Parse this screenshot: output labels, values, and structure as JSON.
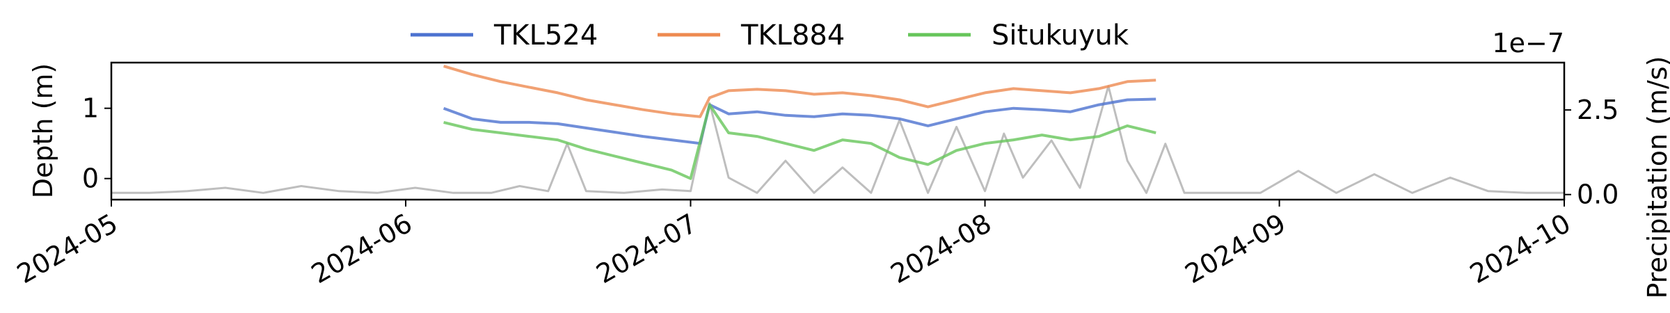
{
  "chart_data": {
    "type": "line",
    "title": "",
    "xlabel": "",
    "ylabel": "Depth (m)",
    "y2label": "Precipitation (m/s)",
    "y2_offset_text": "1e−7",
    "x_range": [
      "2024-05-01",
      "2024-10-01"
    ],
    "x_ticks": [
      "2024-05",
      "2024-06",
      "2024-07",
      "2024-08",
      "2024-09",
      "2024-10"
    ],
    "ylim": [
      -0.3,
      1.65
    ],
    "y_ticks": [
      "0",
      "1"
    ],
    "y2lim": [
      -0.15,
      3.9
    ],
    "y2_ticks": [
      "0.0",
      "2.5"
    ],
    "legend_position": "top-center, outside",
    "grid": false,
    "series": [
      {
        "name": "TKL524",
        "axis": "left",
        "color": "#4C72D0",
        "x": [
          "2024-06-05",
          "2024-06-08",
          "2024-06-11",
          "2024-06-14",
          "2024-06-17",
          "2024-06-20",
          "2024-06-23",
          "2024-06-26",
          "2024-06-29",
          "2024-07-02",
          "2024-07-03",
          "2024-07-05",
          "2024-07-08",
          "2024-07-11",
          "2024-07-14",
          "2024-07-17",
          "2024-07-20",
          "2024-07-23",
          "2024-07-26",
          "2024-07-29",
          "2024-08-01",
          "2024-08-04",
          "2024-08-07",
          "2024-08-10",
          "2024-08-13",
          "2024-08-16",
          "2024-08-19"
        ],
        "y": [
          1.0,
          0.85,
          0.8,
          0.8,
          0.78,
          0.72,
          0.66,
          0.6,
          0.55,
          0.5,
          1.05,
          0.92,
          0.95,
          0.9,
          0.88,
          0.92,
          0.9,
          0.85,
          0.75,
          0.85,
          0.95,
          1.0,
          0.98,
          0.95,
          1.05,
          1.12,
          1.13
        ]
      },
      {
        "name": "TKL884",
        "axis": "left",
        "color": "#EE8A50",
        "x": [
          "2024-06-05",
          "2024-06-08",
          "2024-06-11",
          "2024-06-14",
          "2024-06-17",
          "2024-06-20",
          "2024-06-23",
          "2024-06-26",
          "2024-06-29",
          "2024-07-02",
          "2024-07-03",
          "2024-07-05",
          "2024-07-08",
          "2024-07-11",
          "2024-07-14",
          "2024-07-17",
          "2024-07-20",
          "2024-07-23",
          "2024-07-26",
          "2024-07-29",
          "2024-08-01",
          "2024-08-04",
          "2024-08-07",
          "2024-08-10",
          "2024-08-13",
          "2024-08-16",
          "2024-08-19"
        ],
        "y": [
          1.6,
          1.48,
          1.38,
          1.3,
          1.22,
          1.12,
          1.05,
          0.98,
          0.92,
          0.88,
          1.15,
          1.25,
          1.27,
          1.25,
          1.2,
          1.22,
          1.18,
          1.12,
          1.02,
          1.12,
          1.22,
          1.28,
          1.25,
          1.22,
          1.28,
          1.38,
          1.4
        ]
      },
      {
        "name": "Situkuyuk",
        "axis": "left",
        "color": "#66C55A",
        "x": [
          "2024-06-05",
          "2024-06-08",
          "2024-06-11",
          "2024-06-14",
          "2024-06-17",
          "2024-06-20",
          "2024-06-23",
          "2024-06-26",
          "2024-06-29",
          "2024-07-01",
          "2024-07-03",
          "2024-07-05",
          "2024-07-08",
          "2024-07-11",
          "2024-07-14",
          "2024-07-17",
          "2024-07-20",
          "2024-07-23",
          "2024-07-26",
          "2024-07-29",
          "2024-08-01",
          "2024-08-04",
          "2024-08-07",
          "2024-08-10",
          "2024-08-13",
          "2024-08-16",
          "2024-08-19"
        ],
        "y": [
          0.8,
          0.7,
          0.65,
          0.6,
          0.55,
          0.42,
          0.32,
          0.22,
          0.12,
          0.0,
          1.05,
          0.65,
          0.6,
          0.5,
          0.4,
          0.55,
          0.5,
          0.3,
          0.2,
          0.4,
          0.5,
          0.55,
          0.62,
          0.55,
          0.6,
          0.75,
          0.65
        ]
      },
      {
        "name": "",
        "axis": "right",
        "color": "#BEBEBE",
        "x": [
          "2024-05-01",
          "2024-05-05",
          "2024-05-09",
          "2024-05-13",
          "2024-05-17",
          "2024-05-21",
          "2024-05-25",
          "2024-05-29",
          "2024-06-02",
          "2024-06-06",
          "2024-06-10",
          "2024-06-13",
          "2024-06-16",
          "2024-06-18",
          "2024-06-20",
          "2024-06-24",
          "2024-06-28",
          "2024-07-01",
          "2024-07-03",
          "2024-07-05",
          "2024-07-08",
          "2024-07-11",
          "2024-07-14",
          "2024-07-17",
          "2024-07-20",
          "2024-07-23",
          "2024-07-26",
          "2024-07-29",
          "2024-08-01",
          "2024-08-03",
          "2024-08-05",
          "2024-08-08",
          "2024-08-11",
          "2024-08-14",
          "2024-08-16",
          "2024-08-18",
          "2024-08-20",
          "2024-08-22",
          "2024-08-26",
          "2024-08-30",
          "2024-09-03",
          "2024-09-07",
          "2024-09-11",
          "2024-09-15",
          "2024-09-19",
          "2024-09-23",
          "2024-09-27",
          "2024-10-01"
        ],
        "y": [
          0.05,
          0.05,
          0.1,
          0.2,
          0.05,
          0.25,
          0.1,
          0.05,
          0.2,
          0.05,
          0.05,
          0.25,
          0.1,
          1.5,
          0.1,
          0.05,
          0.15,
          0.1,
          2.7,
          0.5,
          0.05,
          1.0,
          0.05,
          0.8,
          0.05,
          2.2,
          0.05,
          2.0,
          0.1,
          1.8,
          0.5,
          1.6,
          0.2,
          3.2,
          1.0,
          0.05,
          1.5,
          0.05,
          0.05,
          0.05,
          0.7,
          0.05,
          0.6,
          0.05,
          0.5,
          0.1,
          0.05,
          0.05
        ]
      }
    ]
  }
}
